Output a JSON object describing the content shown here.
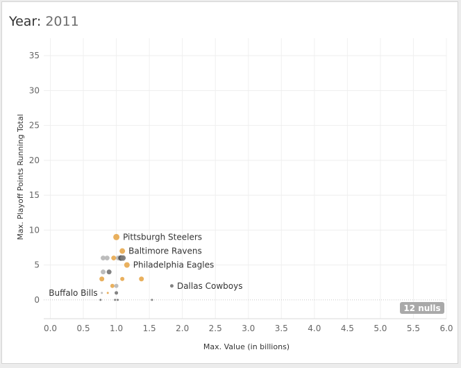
{
  "header": {
    "year_label": "Year:",
    "year_value": "2011"
  },
  "colors": {
    "orange": "#e8ac55",
    "grey": "#7b7b7b",
    "lightgrey": "#b9b9b9",
    "darkgrey": "#555555"
  },
  "chart_data": {
    "type": "scatter",
    "xlabel": "Max. Value (in billions)",
    "ylabel": "Max. Playoff Points Running Total",
    "xlim": [
      -0.1,
      6.0
    ],
    "ylim": [
      -2.7,
      37.5
    ],
    "x_ticks": [
      "0.0",
      "0.5",
      "1.0",
      "1.5",
      "2.0",
      "2.5",
      "3.0",
      "3.5",
      "4.0",
      "4.5",
      "5.0",
      "5.5",
      "6.0"
    ],
    "x_tick_values": [
      0,
      0.5,
      1.0,
      1.5,
      2.0,
      2.5,
      3.0,
      3.5,
      4.0,
      4.5,
      5.0,
      5.5,
      6.0
    ],
    "y_ticks": [
      "0",
      "5",
      "10",
      "15",
      "20",
      "25",
      "30",
      "35"
    ],
    "y_tick_values": [
      0,
      5,
      10,
      15,
      20,
      25,
      30,
      35
    ],
    "grid": true,
    "nulls_badge": "12 nulls",
    "points": [
      {
        "x": 1.0,
        "y": 9.0,
        "color": "orange",
        "r": 4.5,
        "label": "Pittsburgh Steelers"
      },
      {
        "x": 1.09,
        "y": 7.0,
        "color": "orange",
        "r": 4,
        "label": "Baltimore Ravens"
      },
      {
        "x": 1.16,
        "y": 5.0,
        "color": "orange",
        "r": 4,
        "label": "Philadelphia Eagles"
      },
      {
        "x": 1.84,
        "y": 2.0,
        "color": "grey",
        "r": 2.5,
        "label": "Dallas Cowboys"
      },
      {
        "x": 0.78,
        "y": 1.0,
        "color": "lightgrey",
        "r": 1.5,
        "label": "Buffalo Bills"
      },
      {
        "x": 0.8,
        "y": 6.0,
        "color": "lightgrey",
        "r": 3.5
      },
      {
        "x": 0.86,
        "y": 6.0,
        "color": "lightgrey",
        "r": 3.5
      },
      {
        "x": 0.96,
        "y": 6.0,
        "color": "orange",
        "r": 3.5
      },
      {
        "x": 1.03,
        "y": 6.0,
        "color": "lightgrey",
        "r": 3.5
      },
      {
        "x": 1.07,
        "y": 6.0,
        "color": "darkgrey",
        "r": 4
      },
      {
        "x": 1.1,
        "y": 6.0,
        "color": "grey",
        "r": 4
      },
      {
        "x": 0.8,
        "y": 4.0,
        "color": "lightgrey",
        "r": 3.5
      },
      {
        "x": 0.89,
        "y": 4.0,
        "color": "grey",
        "r": 3.5
      },
      {
        "x": 0.78,
        "y": 3.0,
        "color": "orange",
        "r": 3.5
      },
      {
        "x": 1.09,
        "y": 3.0,
        "color": "orange",
        "r": 3
      },
      {
        "x": 1.38,
        "y": 3.0,
        "color": "orange",
        "r": 3.5
      },
      {
        "x": 0.94,
        "y": 2.0,
        "color": "orange",
        "r": 3
      },
      {
        "x": 1.0,
        "y": 2.0,
        "color": "lightgrey",
        "r": 3
      },
      {
        "x": 0.87,
        "y": 1.0,
        "color": "orange",
        "r": 1.5
      },
      {
        "x": 1.0,
        "y": 1.0,
        "color": "grey",
        "r": 2.5
      },
      {
        "x": 1.02,
        "y": 0.0,
        "color": "grey",
        "r": 1.5
      },
      {
        "x": 0.76,
        "y": 0.0,
        "color": "grey",
        "r": 1.5
      },
      {
        "x": 0.98,
        "y": 0.0,
        "color": "grey",
        "r": 1.5
      },
      {
        "x": 1.54,
        "y": 0.0,
        "color": "grey",
        "r": 1.5
      }
    ]
  }
}
